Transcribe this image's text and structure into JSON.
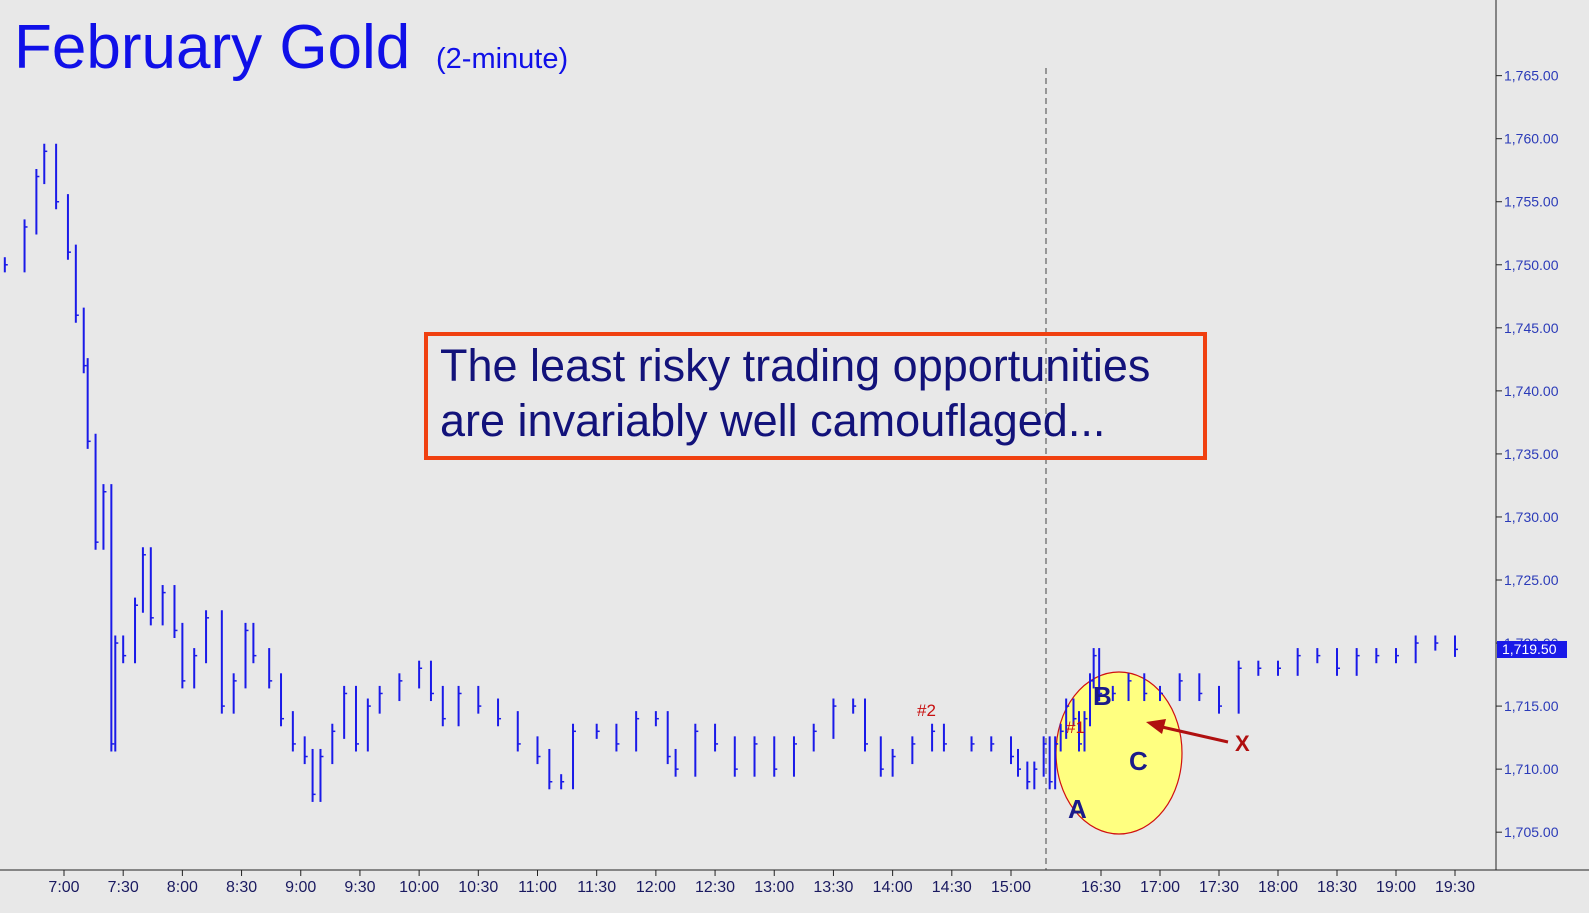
{
  "chart_data": {
    "type": "ohlc",
    "title": "February Gold",
    "subtitle": "(2-minute)",
    "ylim": [
      1702.0,
      1771.0
    ],
    "y_ticks": [
      "1,705.00",
      "1,710.00",
      "1,715.00",
      "1,720.00",
      "1,725.00",
      "1,730.00",
      "1,735.00",
      "1,740.00",
      "1,745.00",
      "1,750.00",
      "1,755.00",
      "1,760.00",
      "1,765.00"
    ],
    "x_ticks": [
      "7:00",
      "7:30",
      "8:00",
      "8:30",
      "9:00",
      "9:30",
      "10:00",
      "10:30",
      "11:00",
      "11:30",
      "12:00",
      "12:30",
      "13:00",
      "13:30",
      "14:00",
      "14:30",
      "15:00",
      "16:30",
      "17:00",
      "17:30",
      "18:00",
      "18:30",
      "19:00",
      "19:30"
    ],
    "last_price": "1,719.50",
    "session_break": "15:30",
    "series": [
      {
        "values": [
          [
            "6:30",
            1750
          ],
          [
            "6:40",
            1753
          ],
          [
            "6:46",
            1757
          ],
          [
            "6:50",
            1759
          ],
          [
            "6:56",
            1755
          ],
          [
            "7:02",
            1751
          ],
          [
            "7:06",
            1746
          ],
          [
            "7:10",
            1742
          ],
          [
            "7:12",
            1736
          ],
          [
            "7:16",
            1728
          ],
          [
            "7:20",
            1732
          ],
          [
            "7:24",
            1712
          ],
          [
            "7:26",
            1720
          ],
          [
            "7:30",
            1719
          ],
          [
            "7:36",
            1723
          ],
          [
            "7:40",
            1727
          ],
          [
            "7:44",
            1722
          ],
          [
            "7:50",
            1724
          ],
          [
            "7:56",
            1721
          ],
          [
            "8:00",
            1717
          ],
          [
            "8:06",
            1719
          ],
          [
            "8:12",
            1722
          ],
          [
            "8:20",
            1715
          ],
          [
            "8:26",
            1717
          ],
          [
            "8:32",
            1721
          ],
          [
            "8:36",
            1719
          ],
          [
            "8:44",
            1717
          ],
          [
            "8:50",
            1714
          ],
          [
            "8:56",
            1712
          ],
          [
            "9:02",
            1711
          ],
          [
            "9:06",
            1708
          ],
          [
            "9:10",
            1711
          ],
          [
            "9:16",
            1713
          ],
          [
            "9:22",
            1716
          ],
          [
            "9:28",
            1712
          ],
          [
            "9:34",
            1715
          ],
          [
            "9:40",
            1716
          ],
          [
            "9:50",
            1717
          ],
          [
            "10:00",
            1718
          ],
          [
            "10:06",
            1716
          ],
          [
            "10:12",
            1714
          ],
          [
            "10:20",
            1716
          ],
          [
            "10:30",
            1715
          ],
          [
            "10:40",
            1714
          ],
          [
            "10:50",
            1712
          ],
          [
            "11:00",
            1711
          ],
          [
            "11:06",
            1709
          ],
          [
            "11:12",
            1709
          ],
          [
            "11:18",
            1713
          ],
          [
            "11:30",
            1713
          ],
          [
            "11:40",
            1712
          ],
          [
            "11:50",
            1714
          ],
          [
            "12:00",
            1714
          ],
          [
            "12:06",
            1711
          ],
          [
            "12:10",
            1710
          ],
          [
            "12:20",
            1713
          ],
          [
            "12:30",
            1712
          ],
          [
            "12:40",
            1710
          ],
          [
            "12:50",
            1712
          ],
          [
            "13:00",
            1710
          ],
          [
            "13:10",
            1712
          ],
          [
            "13:20",
            1713
          ],
          [
            "13:30",
            1715
          ],
          [
            "13:40",
            1715
          ],
          [
            "13:46",
            1712
          ],
          [
            "13:54",
            1710
          ],
          [
            "14:00",
            1711
          ],
          [
            "14:10",
            1712
          ],
          [
            "14:20",
            1713
          ],
          [
            "14:26",
            1712
          ],
          [
            "14:40",
            1712
          ],
          [
            "14:50",
            1712
          ],
          [
            "15:00",
            1711
          ],
          [
            "15:06",
            1710
          ],
          [
            "15:14",
            1709
          ],
          [
            "15:20",
            1710
          ],
          [
            "15:28",
            1712
          ],
          [
            "15:34",
            1709
          ],
          [
            "15:40",
            1712
          ],
          [
            "15:46",
            1713
          ],
          [
            "15:52",
            1715
          ],
          [
            "16:00",
            1714
          ],
          [
            "16:06",
            1712
          ],
          [
            "16:12",
            1714
          ],
          [
            "16:18",
            1717
          ],
          [
            "16:22",
            1719
          ],
          [
            "16:28",
            1716
          ],
          [
            "16:36",
            1716
          ],
          [
            "16:44",
            1717
          ],
          [
            "16:52",
            1716
          ],
          [
            "17:00",
            1716
          ],
          [
            "17:10",
            1717
          ],
          [
            "17:20",
            1716
          ],
          [
            "17:30",
            1715
          ],
          [
            "17:40",
            1718
          ],
          [
            "17:50",
            1718
          ],
          [
            "18:00",
            1718
          ],
          [
            "18:10",
            1719
          ],
          [
            "18:20",
            1719
          ],
          [
            "18:30",
            1718
          ],
          [
            "18:40",
            1719
          ],
          [
            "18:50",
            1719
          ],
          [
            "19:00",
            1719
          ],
          [
            "19:10",
            1720
          ],
          [
            "19:20",
            1720
          ],
          [
            "19:30",
            1719.5
          ]
        ]
      }
    ]
  },
  "callout": {
    "line1": "The least risky trading opportunities",
    "line2": "are invariably well camouflaged..."
  },
  "labels": {
    "hash1": "#1",
    "hash2": "#2",
    "a": "A",
    "b": "B",
    "c": "C",
    "x": "X"
  },
  "colors": {
    "background": "#e8e8e8",
    "bars": "#1a1ae8",
    "callout_border": "#f04010",
    "ellipse_fill": "#ffff80",
    "ellipse_stroke": "#d01010",
    "arrow": "#b01010",
    "price_box": "#1a1ae8"
  }
}
